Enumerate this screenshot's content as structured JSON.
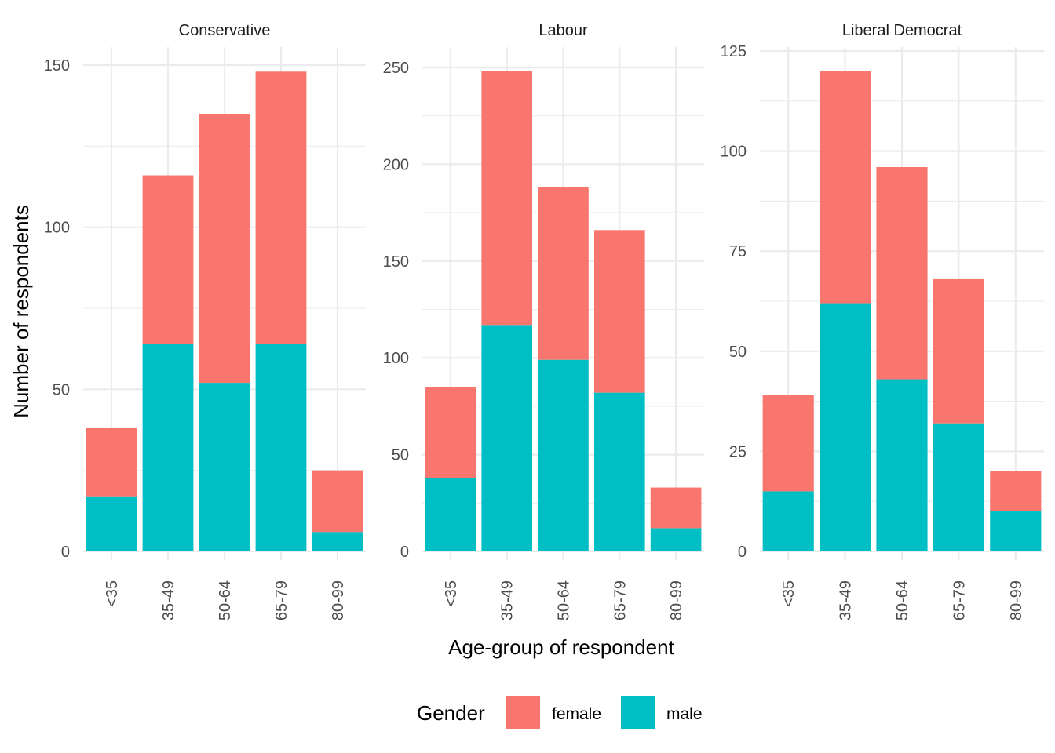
{
  "chart_data": {
    "type": "bar",
    "stacked": true,
    "xlabel": "Age-group of respondent",
    "ylabel": "Number of respondents",
    "categories": [
      "<35",
      "35-49",
      "50-64",
      "65-79",
      "80-99"
    ],
    "legend": {
      "title": "Gender",
      "position": "bottom",
      "entries": [
        "female",
        "male"
      ]
    },
    "colors": {
      "female": "#F8766D",
      "male": "#00BFC4"
    },
    "grid": true,
    "facets": [
      {
        "title": "Conservative",
        "ylim": [
          0,
          155
        ],
        "yticks": [
          0,
          50,
          100,
          150
        ],
        "series": [
          {
            "name": "male",
            "values": [
              17,
              64,
              52,
              64,
              6
            ]
          },
          {
            "name": "female",
            "values": [
              21,
              52,
              83,
              84,
              19
            ]
          }
        ]
      },
      {
        "title": "Labour",
        "ylim": [
          0,
          255
        ],
        "yticks": [
          0,
          50,
          100,
          150,
          200,
          250
        ],
        "series": [
          {
            "name": "male",
            "values": [
              38,
              117,
              99,
              82,
              12
            ]
          },
          {
            "name": "female",
            "values": [
              47,
              131,
              89,
              84,
              21
            ]
          }
        ]
      },
      {
        "title": "Liberal Democrat",
        "ylim": [
          0,
          125
        ],
        "yticks": [
          0,
          25,
          50,
          75,
          100,
          125
        ],
        "series": [
          {
            "name": "male",
            "values": [
              15,
              62,
              43,
              32,
              10
            ]
          },
          {
            "name": "female",
            "values": [
              24,
              58,
              53,
              36,
              10
            ]
          }
        ]
      }
    ]
  }
}
